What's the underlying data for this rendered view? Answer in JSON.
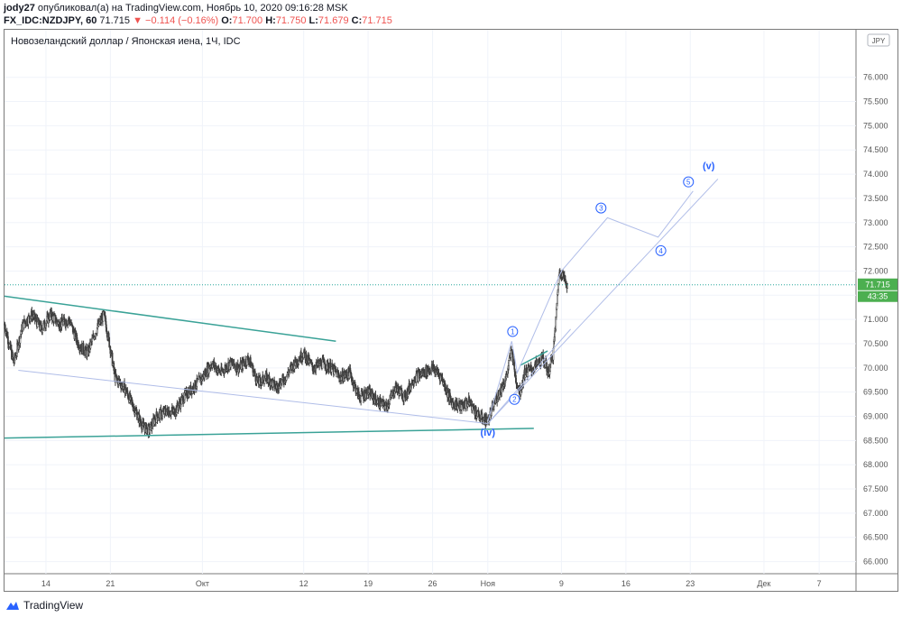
{
  "header": {
    "publisher": "jody27",
    "published_text": "опубликовал(а) на TradingView.com, Ноябрь 10, 2020 09:16:28 MSK",
    "symbol": "FX_IDC:NZDJPY, 60",
    "last": "71.715",
    "change": "−0.114 (−0.16%)",
    "o_label": "O:",
    "o_value": "71.700",
    "h_label": "H:",
    "h_value": "71.750",
    "l_label": "L:",
    "l_value": "71.679",
    "c_label": "C:",
    "c_value": "71.715"
  },
  "legend_title": "Новозеландский доллар / Японская иена, 1Ч, IDC",
  "currency_badge": "JPY",
  "price_label": {
    "value": "71.715",
    "countdown": "43:35"
  },
  "footer": {
    "brand": "TradingView"
  },
  "colors": {
    "up": "#26a69a",
    "down": "#ef5350",
    "candle": "#3d3d3d",
    "trendline": "#3aa297",
    "projection": "#b0bde8",
    "wave_label": "#2962ff",
    "price_badge": "#4caf50"
  },
  "chart_data": {
    "type": "candlestick",
    "title": "Новозеландский доллар / Японская иена, 1Ч, IDC",
    "ylim": [
      65.75,
      77.0
    ],
    "y_ticks": [
      "66.000",
      "66.500",
      "67.000",
      "67.500",
      "68.000",
      "68.500",
      "69.000",
      "69.500",
      "70.000",
      "70.500",
      "71.000",
      "71.500",
      "72.000",
      "72.500",
      "73.000",
      "73.500",
      "74.000",
      "74.500",
      "75.000",
      "75.500",
      "76.000"
    ],
    "x_ticks": [
      {
        "label": "14",
        "day": 14
      },
      {
        "label": "21",
        "day": 21
      },
      {
        "label": "Окт",
        "day": 31
      },
      {
        "label": "12",
        "day": 42
      },
      {
        "label": "19",
        "day": 49
      },
      {
        "label": "26",
        "day": 56
      },
      {
        "label": "Ноя",
        "day": 62
      },
      {
        "label": "9",
        "day": 70
      },
      {
        "label": "16",
        "day": 77
      },
      {
        "label": "23",
        "day": 84
      },
      {
        "label": "Дек",
        "day": 92
      },
      {
        "label": "7",
        "day": 98
      }
    ],
    "x_range_days": [
      9.5,
      102
    ],
    "last_price": 71.715,
    "price_path": [
      [
        9.5,
        70.9
      ],
      [
        10.5,
        70.1
      ],
      [
        11.5,
        70.9
      ],
      [
        12.5,
        71.1
      ],
      [
        13.5,
        70.8
      ],
      [
        14.5,
        71.1
      ],
      [
        15.5,
        70.9
      ],
      [
        16.5,
        71.0
      ],
      [
        17.5,
        70.5
      ],
      [
        18.5,
        70.3
      ],
      [
        19.5,
        70.8
      ],
      [
        20.3,
        71.1
      ],
      [
        21.0,
        70.4
      ],
      [
        21.5,
        69.8
      ],
      [
        22.5,
        69.6
      ],
      [
        23.5,
        69.2
      ],
      [
        24.5,
        68.8
      ],
      [
        25.2,
        68.7
      ],
      [
        26.0,
        69.0
      ],
      [
        27.0,
        69.1
      ],
      [
        28.0,
        69.1
      ],
      [
        29.0,
        69.4
      ],
      [
        30.0,
        69.6
      ],
      [
        31.0,
        69.8
      ],
      [
        32.0,
        70.1
      ],
      [
        33.0,
        69.9
      ],
      [
        34.0,
        70.1
      ],
      [
        35.0,
        70.0
      ],
      [
        36.0,
        70.2
      ],
      [
        37.0,
        69.7
      ],
      [
        38.0,
        69.8
      ],
      [
        39.0,
        69.6
      ],
      [
        40.0,
        69.8
      ],
      [
        41.0,
        70.1
      ],
      [
        42.0,
        70.3
      ],
      [
        43.0,
        70.0
      ],
      [
        44.0,
        70.1
      ],
      [
        45.0,
        70.0
      ],
      [
        46.0,
        69.8
      ],
      [
        47.0,
        69.9
      ],
      [
        48.0,
        69.4
      ],
      [
        49.0,
        69.5
      ],
      [
        50.0,
        69.3
      ],
      [
        51.0,
        69.2
      ],
      [
        52.0,
        69.6
      ],
      [
        53.0,
        69.4
      ],
      [
        54.0,
        69.8
      ],
      [
        55.0,
        69.9
      ],
      [
        56.0,
        70.0
      ],
      [
        57.0,
        69.8
      ],
      [
        58.0,
        69.3
      ],
      [
        59.0,
        69.2
      ],
      [
        60.0,
        69.3
      ],
      [
        61.0,
        69.0
      ],
      [
        62.0,
        68.9
      ],
      [
        63.0,
        69.4
      ],
      [
        64.0,
        69.8
      ],
      [
        64.6,
        70.4
      ],
      [
        65.0,
        69.8
      ],
      [
        65.5,
        69.5
      ],
      [
        66.0,
        69.9
      ],
      [
        67.0,
        70.0
      ],
      [
        68.0,
        70.2
      ],
      [
        68.6,
        69.9
      ],
      [
        69.1,
        70.3
      ],
      [
        69.4,
        71.0
      ],
      [
        69.7,
        71.9
      ],
      [
        70.0,
        72.0
      ],
      [
        70.4,
        71.8
      ],
      [
        70.7,
        71.715
      ]
    ],
    "annotations": {
      "wave_labels": [
        {
          "text": "1",
          "circled": true,
          "day": 64.7,
          "price": 70.75
        },
        {
          "text": "2",
          "circled": true,
          "day": 64.9,
          "price": 69.35
        },
        {
          "text": "3",
          "circled": true,
          "day": 74.3,
          "price": 73.3
        },
        {
          "text": "4",
          "circled": true,
          "day": 80.8,
          "price": 72.42
        },
        {
          "text": "5",
          "circled": true,
          "day": 83.8,
          "price": 73.84
        },
        {
          "text": "(v)",
          "circled": false,
          "day": 86.0,
          "price": 74.1
        },
        {
          "text": "(iv)",
          "circled": false,
          "day": 62.0,
          "price": 68.6
        }
      ],
      "upper_trendline": [
        [
          9.5,
          71.48
        ],
        [
          45.5,
          70.55
        ]
      ],
      "lower_trendline": [
        [
          9.5,
          68.55
        ],
        [
          67.0,
          68.75
        ]
      ],
      "channel_small": [
        [
          65.5,
          70.05
        ],
        [
          68.5,
          70.35
        ]
      ],
      "projection_path": [
        [
          62.0,
          68.9
        ],
        [
          64.6,
          70.55
        ],
        [
          65.2,
          69.9
        ],
        [
          70.0,
          72.0
        ],
        [
          75.0,
          73.1
        ],
        [
          80.5,
          72.7
        ],
        [
          84.3,
          73.65
        ]
      ],
      "projection_lines": [
        [
          [
            11.0,
            69.95
          ],
          [
            62.0,
            68.85
          ]
        ],
        [
          [
            62.0,
            68.85
          ],
          [
            71.0,
            70.8
          ]
        ],
        [
          [
            62.0,
            68.85
          ],
          [
            87.0,
            73.9
          ]
        ]
      ]
    }
  }
}
